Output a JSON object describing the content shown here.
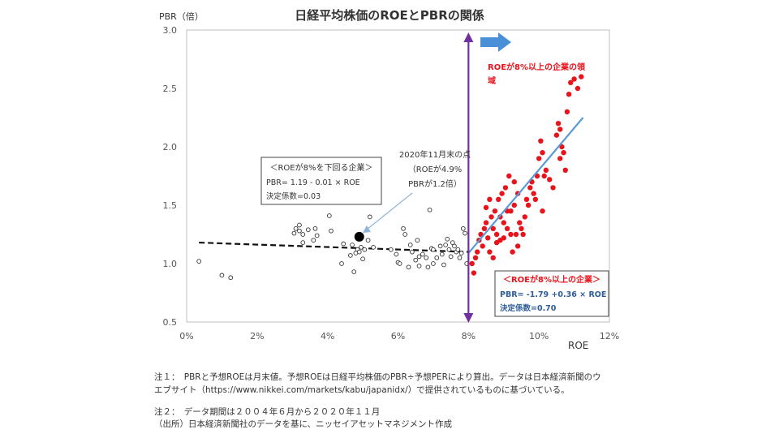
{
  "chart_data": {
    "type": "scatter",
    "title": "日経平均株価のROEとPBRの関係",
    "ylabel": "PBR（倍）",
    "xlabel": "ROE",
    "xlim": [
      0,
      12
    ],
    "ylim": [
      0.5,
      3.0
    ],
    "x_ticks": [
      0,
      2,
      4,
      6,
      8,
      10,
      12
    ],
    "x_tick_labels": [
      "0%",
      "2%",
      "4%",
      "6%",
      "8%",
      "10%",
      "12%"
    ],
    "y_ticks": [
      0.5,
      1.0,
      1.5,
      2.0,
      2.5,
      3.0
    ],
    "y_tick_labels": [
      "0.5",
      "1.0",
      "1.5",
      "2.0",
      "2.5",
      "3.0"
    ],
    "grid": false,
    "threshold_x": 8,
    "colors": {
      "low": "#333333",
      "high": "#e8141c",
      "high_fit": "#5b9bd5",
      "threshold": "#7030a0",
      "arrow": "#4a90d9",
      "highlight": "#000000"
    },
    "series": [
      {
        "values": [
          [
            0.35,
            1.02
          ],
          [
            1.0,
            0.9
          ],
          [
            1.25,
            0.88
          ],
          [
            3.05,
            1.26
          ],
          [
            3.1,
            1.3
          ],
          [
            3.2,
            1.28
          ],
          [
            3.2,
            1.33
          ],
          [
            3.3,
            1.25
          ],
          [
            3.45,
            1.29
          ],
          [
            3.6,
            1.2
          ],
          [
            3.3,
            1.18
          ],
          [
            3.7,
            1.24
          ],
          [
            3.65,
            1.3
          ],
          [
            4.05,
            1.41
          ],
          [
            4.1,
            1.28
          ],
          [
            4.45,
            1.17
          ],
          [
            4.7,
            1.16
          ],
          [
            4.75,
            0.93
          ],
          [
            4.85,
            1.12
          ],
          [
            4.9,
            1.1
          ],
          [
            4.95,
            1.14
          ],
          [
            5.0,
            1.04
          ],
          [
            5.05,
            1.12
          ],
          [
            5.15,
            1.2
          ],
          [
            5.2,
            1.4
          ],
          [
            5.3,
            1.14
          ],
          [
            5.8,
            1.12
          ],
          [
            5.95,
            1.08
          ],
          [
            6.0,
            1.01
          ],
          [
            6.05,
            1.0
          ],
          [
            6.15,
            1.3
          ],
          [
            6.2,
            1.25
          ],
          [
            6.3,
            0.97
          ],
          [
            6.35,
            1.16
          ],
          [
            6.4,
            1.1
          ],
          [
            6.5,
            1.03
          ],
          [
            6.6,
            1.06
          ],
          [
            6.55,
            1.2
          ],
          [
            6.7,
            1.08
          ],
          [
            6.8,
            1.05
          ],
          [
            6.85,
            0.97
          ],
          [
            6.9,
            1.46
          ],
          [
            6.95,
            1.13
          ],
          [
            7.0,
            1.12
          ],
          [
            7.1,
            1.05
          ],
          [
            7.2,
            1.15
          ],
          [
            7.25,
            1.08
          ],
          [
            7.3,
            0.99
          ],
          [
            7.35,
            1.16
          ],
          [
            7.45,
            1.12
          ],
          [
            7.5,
            1.06
          ],
          [
            7.55,
            1.18
          ],
          [
            7.6,
            1.15
          ],
          [
            7.65,
            1.1
          ],
          [
            7.7,
            1.12
          ],
          [
            7.75,
            1.05
          ],
          [
            7.8,
            1.09
          ],
          [
            7.85,
            1.3
          ],
          [
            7.9,
            1.26
          ],
          [
            7.95,
            1.0
          ],
          [
            7.0,
            1.0
          ],
          [
            7.4,
            1.21
          ],
          [
            6.6,
            0.98
          ],
          [
            4.4,
            1.0
          ],
          [
            4.65,
            1.07
          ],
          [
            4.8,
            1.09
          ]
        ]
      },
      {
        "values": [
          [
            8.1,
            1.0
          ],
          [
            8.15,
            0.92
          ],
          [
            8.2,
            1.05
          ],
          [
            8.25,
            1.1
          ],
          [
            8.3,
            1.2
          ],
          [
            8.35,
            1.25
          ],
          [
            8.4,
            1.15
          ],
          [
            8.45,
            1.3
          ],
          [
            8.5,
            1.35
          ],
          [
            8.55,
            1.22
          ],
          [
            8.6,
            1.1
          ],
          [
            8.65,
            1.4
          ],
          [
            8.7,
            1.3
          ],
          [
            8.75,
            1.45
          ],
          [
            8.8,
            1.25
          ],
          [
            8.85,
            1.55
          ],
          [
            8.9,
            1.2
          ],
          [
            8.95,
            1.6
          ],
          [
            9.0,
            1.35
          ],
          [
            9.05,
            1.65
          ],
          [
            9.1,
            1.3
          ],
          [
            9.15,
            1.75
          ],
          [
            9.2,
            1.45
          ],
          [
            9.25,
            1.1
          ],
          [
            9.3,
            1.5
          ],
          [
            9.35,
            1.25
          ],
          [
            9.4,
            1.15
          ],
          [
            9.45,
            1.35
          ],
          [
            9.5,
            1.3
          ],
          [
            9.55,
            1.25
          ],
          [
            9.6,
            1.4
          ],
          [
            9.65,
            1.55
          ],
          [
            9.7,
            1.5
          ],
          [
            9.75,
            1.65
          ],
          [
            9.8,
            1.7
          ],
          [
            9.85,
            1.6
          ],
          [
            9.9,
            1.55
          ],
          [
            9.95,
            1.75
          ],
          [
            10.0,
            1.9
          ],
          [
            10.05,
            2.05
          ],
          [
            10.1,
            1.95
          ],
          [
            10.15,
            1.75
          ],
          [
            10.2,
            1.8
          ],
          [
            10.3,
            1.72
          ],
          [
            10.4,
            1.65
          ],
          [
            10.5,
            2.1
          ],
          [
            10.55,
            2.2
          ],
          [
            10.6,
            2.15
          ],
          [
            10.65,
            2.0
          ],
          [
            10.7,
            1.95
          ],
          [
            10.75,
            1.8
          ],
          [
            10.8,
            2.3
          ],
          [
            10.85,
            2.45
          ],
          [
            10.9,
            2.55
          ],
          [
            11.0,
            2.58
          ],
          [
            11.2,
            2.6
          ],
          [
            11.1,
            2.5
          ],
          [
            10.6,
            1.9
          ],
          [
            10.1,
            1.45
          ],
          [
            9.3,
            1.7
          ],
          [
            8.6,
            1.55
          ],
          [
            8.5,
            1.48
          ],
          [
            8.8,
            1.18
          ],
          [
            9.0,
            1.22
          ],
          [
            9.1,
            1.45
          ],
          [
            9.4,
            1.6
          ],
          [
            8.7,
            1.05
          ],
          [
            9.2,
            1.25
          ],
          [
            8.9,
            1.4
          ]
        ]
      }
    ],
    "fit_lines": [
      {
        "x": [
          0.35,
          8.0
        ],
        "y": [
          1.18,
          1.1
        ],
        "style": "dashed"
      },
      {
        "x": [
          8.0,
          11.25
        ],
        "y": [
          1.09,
          2.25
        ],
        "style": "solid"
      }
    ],
    "highlight_point": {
      "x": 4.9,
      "y": 1.23
    },
    "annotations": {
      "highlight": [
        "2020年11月末の点",
        "（ROEが4.9%",
        "PBRが1.2倍）"
      ],
      "region": [
        "ROEが8%以上の企業の領",
        "域"
      ],
      "low_box": [
        "＜ROEが8%を下回る企業＞",
        "PBR= 1.19  - 0.01 × ROE",
        "決定係数=0.03"
      ],
      "high_box": [
        "＜ROEが8%以上の企業＞",
        "PBR= -1.79 +0.36 × ROE",
        "決定係数=0.70"
      ]
    }
  },
  "notes": {
    "note1_line1": "注１：　PBRと予想ROEは月末値。予想ROEは日経平均株価のPBR÷予想PERにより算出。データは日本経済新聞のウ",
    "note1_line2": "エブサイト（https://www.nikkei.com/markets/kabu/japanidx/）で提供されているものに基づいている。",
    "note2": "注２：　データ期間は２００４年６月から２０２０年１１月",
    "source": "（出所）日本経済新聞社のデータを基に、ニッセイアセットマネジメント作成"
  }
}
